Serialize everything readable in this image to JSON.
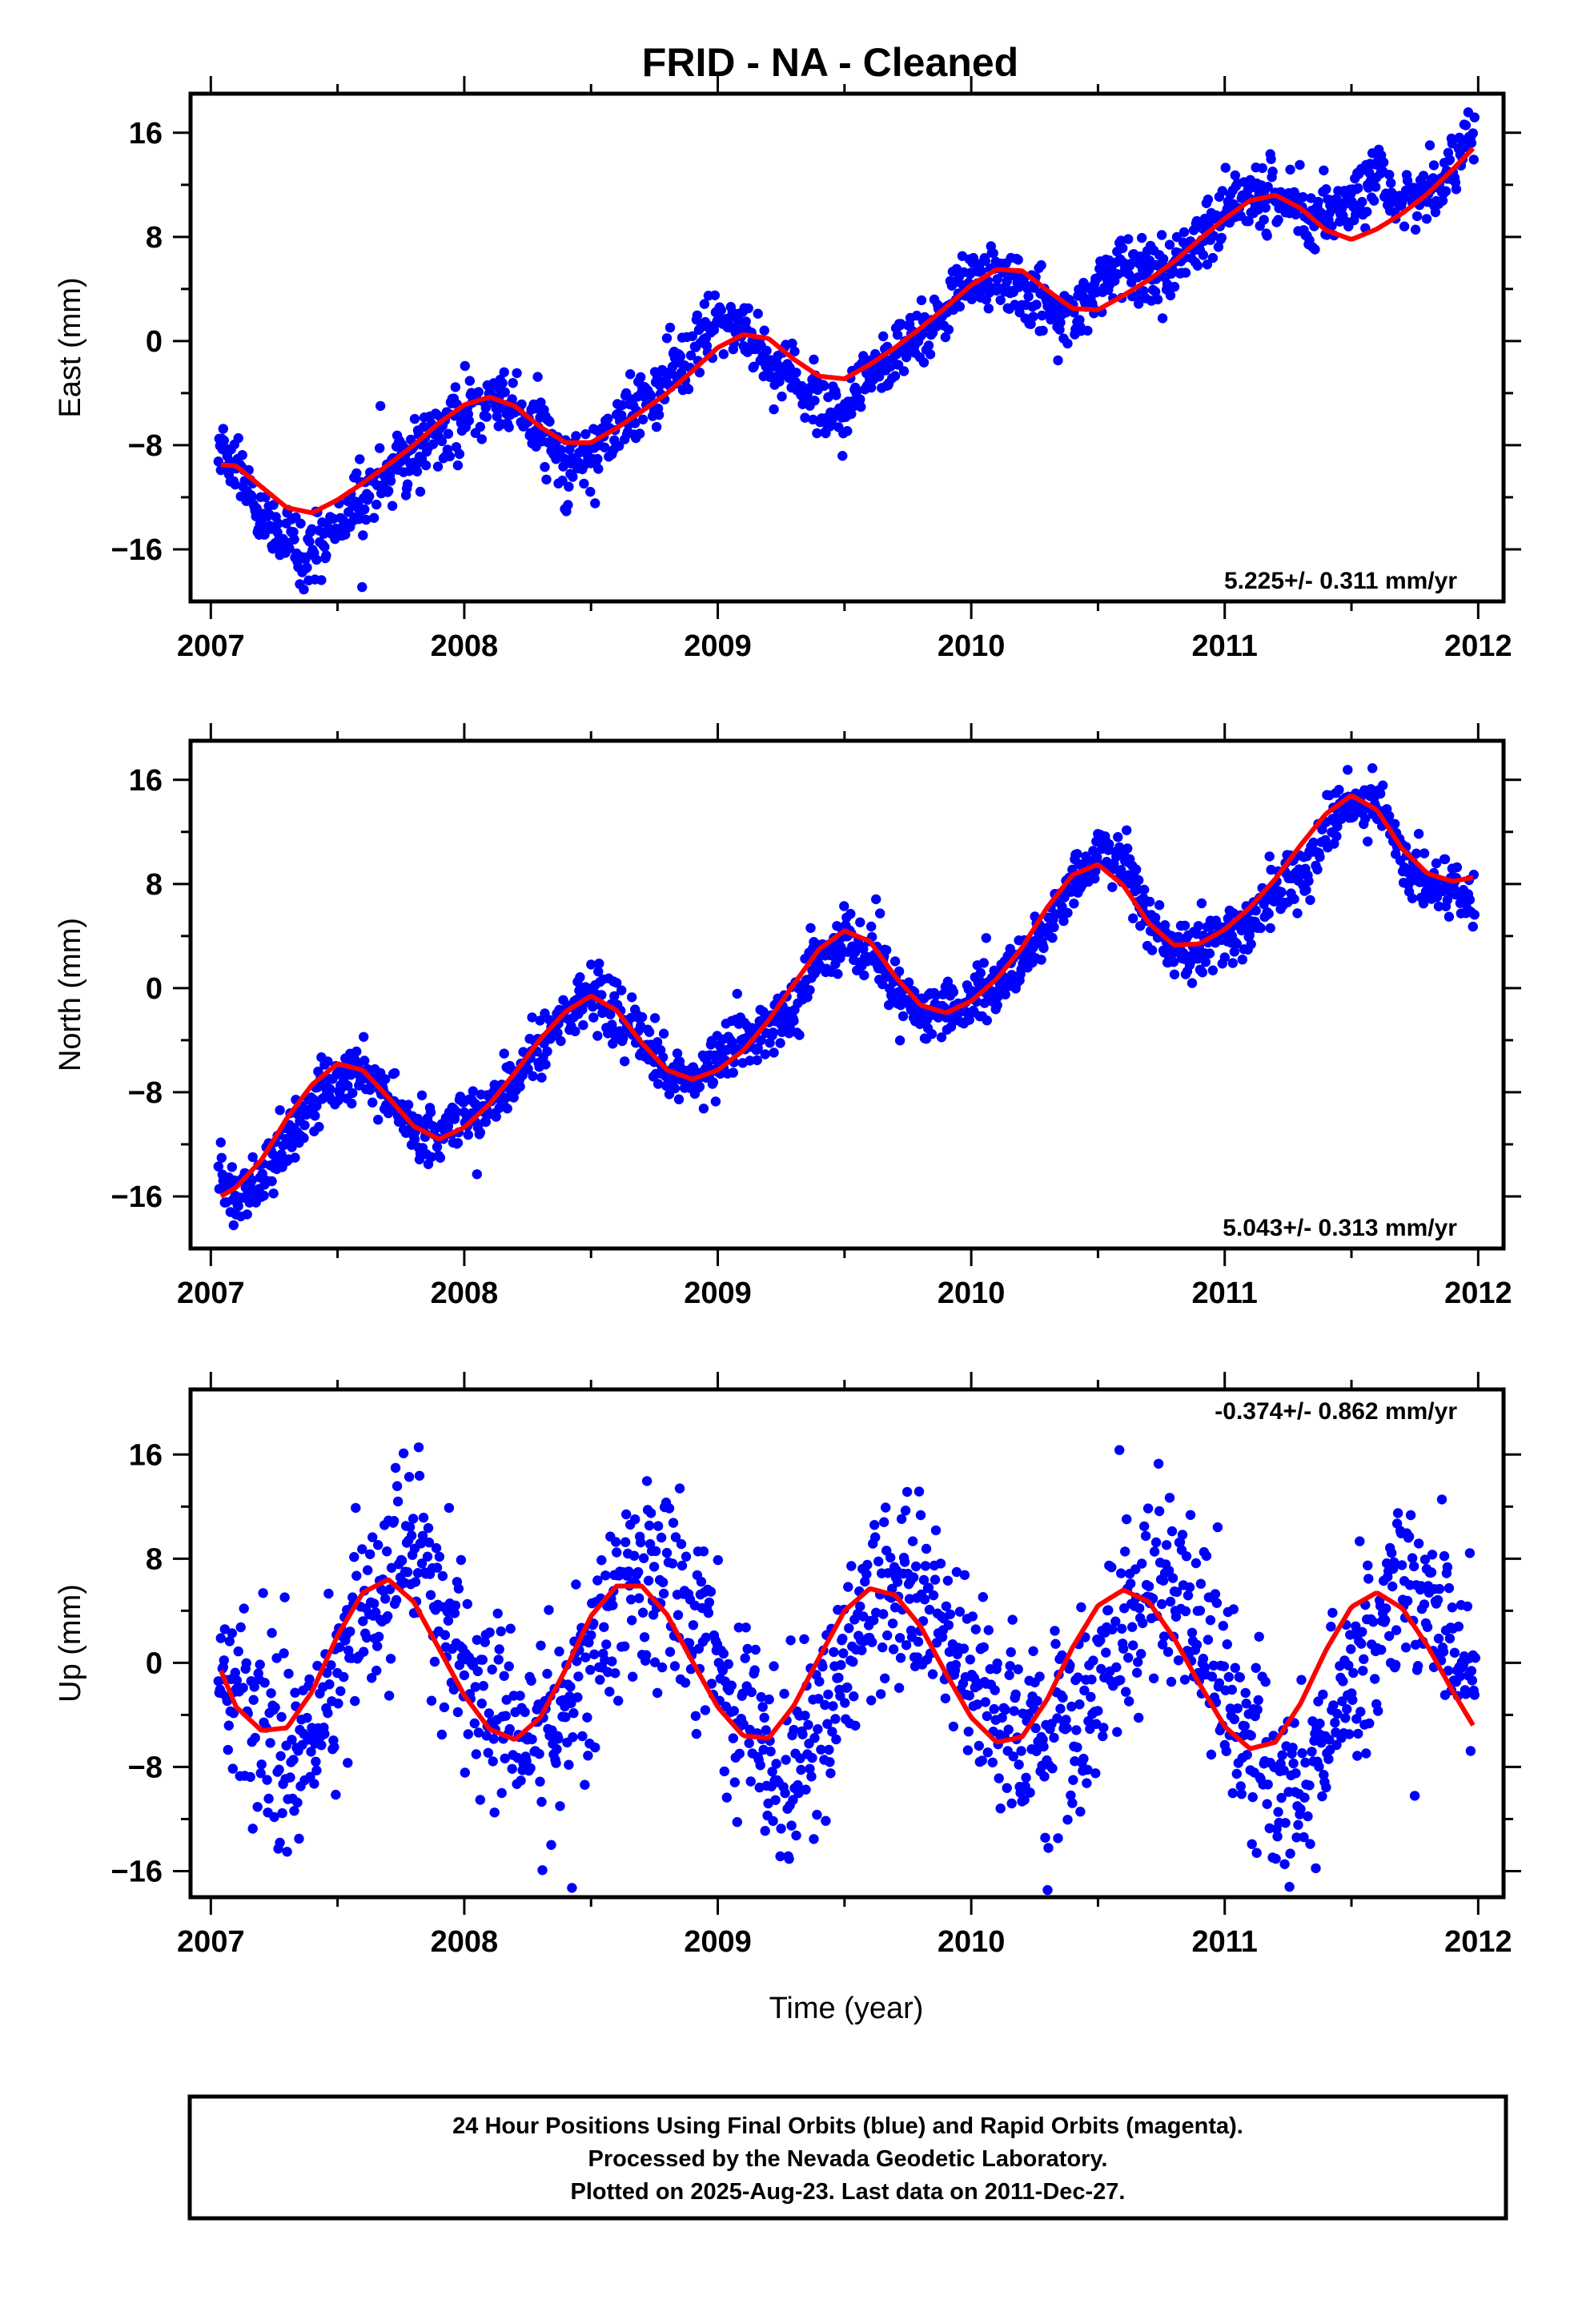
{
  "title": "FRID  - NA - Cleaned",
  "xlabel": "Time (year)",
  "footer": [
    "24 Hour Positions Using Final Orbits (blue) and Rapid Orbits (magenta).",
    "Processed by the Nevada Geodetic Laboratory.",
    "Plotted on 2025-Aug-23. Last data on 2011-Dec-27."
  ],
  "colors": {
    "points": "#0000ff",
    "model": "#ff0000",
    "frame": "#000000"
  },
  "chart_data": [
    {
      "type": "scatter",
      "ylabel": "East (mm)",
      "rate_label": "5.225+/- 0.311 mm/yr",
      "xlim": [
        2006.92,
        2012.1
      ],
      "ylim": [
        -20,
        19
      ],
      "xticks": [
        2007,
        2008,
        2009,
        2010,
        2011,
        2012
      ],
      "yticks": [
        -16,
        -8,
        0,
        8,
        16
      ],
      "data_start": 2007.03,
      "data_end": 2011.99,
      "grid": false,
      "series": [
        {
          "kind": "daily-positions",
          "x": [
            2007.04,
            2007.1,
            2007.2,
            2007.3,
            2007.4,
            2007.5,
            2007.6,
            2007.7,
            2007.8,
            2007.9,
            2008.0,
            2008.1,
            2008.2,
            2008.3,
            2008.4,
            2008.5,
            2008.6,
            2008.7,
            2008.8,
            2008.9,
            2009.0,
            2009.1,
            2009.2,
            2009.3,
            2009.4,
            2009.5,
            2009.6,
            2009.7,
            2009.8,
            2009.9,
            2010.0,
            2010.1,
            2010.2,
            2010.3,
            2010.4,
            2010.5,
            2010.6,
            2010.7,
            2010.8,
            2010.9,
            2011.0,
            2011.1,
            2011.2,
            2011.3,
            2011.4,
            2011.5,
            2011.6,
            2011.7,
            2011.8,
            2011.9,
            2011.98
          ],
          "y": [
            -8.0,
            -9.5,
            -14.0,
            -15.5,
            -16.5,
            -14.0,
            -12.0,
            -10.0,
            -8.5,
            -7.0,
            -5.5,
            -4.0,
            -5.0,
            -6.5,
            -9.5,
            -8.5,
            -6.5,
            -4.5,
            -3.0,
            -1.0,
            1.5,
            1.0,
            -1.5,
            -3.0,
            -4.5,
            -5.5,
            -3.0,
            -1.0,
            0.5,
            2.5,
            4.5,
            5.5,
            4.0,
            2.5,
            2.0,
            4.5,
            6.0,
            5.0,
            5.5,
            7.5,
            10.0,
            11.5,
            11.0,
            10.0,
            9.5,
            10.5,
            12.5,
            10.5,
            11.0,
            13.0,
            16.0
          ]
        },
        {
          "kind": "model-fit",
          "x": [
            2007.04,
            2007.1,
            2007.2,
            2007.3,
            2007.4,
            2007.5,
            2007.6,
            2007.7,
            2007.8,
            2007.9,
            2008.0,
            2008.1,
            2008.2,
            2008.3,
            2008.4,
            2008.5,
            2008.6,
            2008.7,
            2008.8,
            2008.9,
            2009.0,
            2009.1,
            2009.2,
            2009.3,
            2009.4,
            2009.5,
            2009.6,
            2009.7,
            2009.8,
            2009.9,
            2010.0,
            2010.1,
            2010.2,
            2010.3,
            2010.4,
            2010.5,
            2010.6,
            2010.7,
            2010.8,
            2010.9,
            2011.0,
            2011.1,
            2011.2,
            2011.3,
            2011.4,
            2011.5,
            2011.6,
            2011.7,
            2011.8,
            2011.9,
            2011.98
          ],
          "y": [
            -9.5,
            -9.6,
            -11.2,
            -12.8,
            -13.2,
            -12.2,
            -10.9,
            -9.5,
            -8.0,
            -6.3,
            -4.9,
            -4.3,
            -5.0,
            -6.6,
            -7.8,
            -7.8,
            -6.7,
            -5.4,
            -4.0,
            -2.3,
            -0.5,
            0.5,
            0.2,
            -1.4,
            -2.7,
            -2.9,
            -1.8,
            -0.5,
            1.0,
            2.6,
            4.3,
            5.5,
            5.4,
            3.9,
            2.5,
            2.4,
            3.5,
            4.7,
            6.1,
            7.8,
            9.4,
            10.8,
            11.2,
            10.2,
            8.5,
            7.8,
            8.6,
            9.8,
            11.3,
            13.2,
            14.8
          ]
        }
      ]
    },
    {
      "type": "scatter",
      "ylabel": "North (mm)",
      "rate_label": "5.043+/- 0.313 mm/yr",
      "xlim": [
        2006.92,
        2012.1
      ],
      "ylim": [
        -20,
        19
      ],
      "xticks": [
        2007,
        2008,
        2009,
        2010,
        2011,
        2012
      ],
      "yticks": [
        -16,
        -8,
        0,
        8,
        16
      ],
      "data_start": 2007.03,
      "data_end": 2011.99,
      "grid": false,
      "series": [
        {
          "kind": "daily-positions",
          "x": [
            2007.04,
            2007.1,
            2007.2,
            2007.3,
            2007.4,
            2007.5,
            2007.6,
            2007.7,
            2007.8,
            2007.9,
            2008.0,
            2008.1,
            2008.2,
            2008.3,
            2008.4,
            2008.5,
            2008.6,
            2008.7,
            2008.8,
            2008.9,
            2009.0,
            2009.1,
            2009.2,
            2009.3,
            2009.4,
            2009.5,
            2009.6,
            2009.7,
            2009.8,
            2009.9,
            2010.0,
            2010.1,
            2010.2,
            2010.3,
            2010.4,
            2010.5,
            2010.6,
            2010.7,
            2010.8,
            2010.9,
            2011.0,
            2011.1,
            2011.2,
            2011.3,
            2011.4,
            2011.5,
            2011.6,
            2011.7,
            2011.8,
            2011.9,
            2011.98
          ],
          "y": [
            -15.0,
            -16.5,
            -15.0,
            -12.0,
            -8.5,
            -6.5,
            -6.0,
            -8.5,
            -11.0,
            -11.0,
            -10.0,
            -9.0,
            -7.0,
            -4.0,
            -2.0,
            -0.5,
            -1.5,
            -4.0,
            -6.5,
            -7.0,
            -5.5,
            -4.0,
            -3.5,
            -1.0,
            2.0,
            3.5,
            3.0,
            0.0,
            -1.5,
            -2.0,
            -1.0,
            0.5,
            2.0,
            5.0,
            8.0,
            10.5,
            10.0,
            5.5,
            3.0,
            3.0,
            4.0,
            5.0,
            7.0,
            9.0,
            12.5,
            14.0,
            14.5,
            10.0,
            8.0,
            8.0,
            7.0
          ]
        },
        {
          "kind": "model-fit",
          "x": [
            2007.04,
            2007.1,
            2007.2,
            2007.3,
            2007.4,
            2007.5,
            2007.6,
            2007.7,
            2007.8,
            2007.9,
            2008.0,
            2008.1,
            2008.2,
            2008.3,
            2008.4,
            2008.5,
            2008.6,
            2008.7,
            2008.8,
            2008.9,
            2009.0,
            2009.1,
            2009.2,
            2009.3,
            2009.4,
            2009.5,
            2009.6,
            2009.7,
            2009.8,
            2009.9,
            2010.0,
            2010.1,
            2010.2,
            2010.3,
            2010.4,
            2010.5,
            2010.6,
            2010.7,
            2010.8,
            2010.9,
            2011.0,
            2011.1,
            2011.2,
            2011.3,
            2011.4,
            2011.5,
            2011.6,
            2011.7,
            2011.8,
            2011.9,
            2011.98
          ],
          "y": [
            -16.0,
            -15.3,
            -13.2,
            -10.0,
            -7.4,
            -5.8,
            -6.3,
            -8.4,
            -10.6,
            -11.6,
            -10.7,
            -8.9,
            -6.5,
            -3.9,
            -1.8,
            -0.6,
            -1.7,
            -4.2,
            -6.3,
            -7.0,
            -6.3,
            -4.8,
            -2.5,
            0.3,
            3.0,
            4.4,
            3.6,
            0.9,
            -1.3,
            -1.9,
            -1.0,
            0.7,
            3.1,
            6.2,
            8.7,
            9.5,
            7.9,
            5.0,
            3.3,
            3.4,
            4.5,
            6.2,
            8.4,
            11.0,
            13.4,
            14.8,
            13.7,
            10.7,
            8.8,
            8.2,
            8.5
          ]
        }
      ]
    },
    {
      "type": "scatter",
      "ylabel": "Up (mm)",
      "rate_label": "-0.374+/- 0.862 mm/yr",
      "xlim": [
        2006.92,
        2012.1
      ],
      "ylim": [
        -18,
        21
      ],
      "xticks": [
        2007,
        2008,
        2009,
        2010,
        2011,
        2012
      ],
      "yticks": [
        -16,
        -8,
        0,
        8,
        16
      ],
      "data_start": 2007.03,
      "data_end": 2011.99,
      "grid": false,
      "series": [
        {
          "kind": "daily-positions",
          "x": [
            2007.04,
            2007.1,
            2007.2,
            2007.3,
            2007.4,
            2007.5,
            2007.6,
            2007.7,
            2007.8,
            2007.9,
            2008.0,
            2008.1,
            2008.2,
            2008.3,
            2008.4,
            2008.5,
            2008.6,
            2008.7,
            2008.8,
            2008.9,
            2009.0,
            2009.1,
            2009.2,
            2009.3,
            2009.4,
            2009.5,
            2009.6,
            2009.7,
            2009.8,
            2009.9,
            2010.0,
            2010.1,
            2010.2,
            2010.3,
            2010.4,
            2010.5,
            2010.6,
            2010.7,
            2010.8,
            2010.9,
            2011.0,
            2011.1,
            2011.2,
            2011.3,
            2011.4,
            2011.5,
            2011.6,
            2011.7,
            2011.8,
            2011.9,
            2011.98
          ],
          "y": [
            -1.0,
            -3.0,
            -6.0,
            -8.0,
            -6.0,
            -1.0,
            4.0,
            8.0,
            7.0,
            4.0,
            1.0,
            -2.0,
            -5.0,
            -6.0,
            -4.0,
            1.0,
            5.0,
            7.0,
            6.0,
            3.0,
            -1.0,
            -4.0,
            -7.0,
            -8.0,
            -5.0,
            0.0,
            4.0,
            6.0,
            5.0,
            2.0,
            -1.0,
            -4.0,
            -6.0,
            -7.0,
            -5.0,
            -1.0,
            3.0,
            5.0,
            5.0,
            2.0,
            -2.0,
            -5.0,
            -8.0,
            -9.0,
            -6.0,
            -1.0,
            3.0,
            6.0,
            5.0,
            2.0,
            -1.0
          ]
        },
        {
          "kind": "model-fit",
          "x": [
            2007.04,
            2007.1,
            2007.2,
            2007.3,
            2007.4,
            2007.5,
            2007.6,
            2007.7,
            2007.8,
            2007.9,
            2008.0,
            2008.1,
            2008.2,
            2008.3,
            2008.4,
            2008.5,
            2008.6,
            2008.7,
            2008.8,
            2008.9,
            2009.0,
            2009.1,
            2009.2,
            2009.3,
            2009.4,
            2009.5,
            2009.6,
            2009.7,
            2009.8,
            2009.9,
            2010.0,
            2010.1,
            2010.2,
            2010.3,
            2010.4,
            2010.5,
            2010.6,
            2010.7,
            2010.8,
            2010.9,
            2011.0,
            2011.1,
            2011.2,
            2011.3,
            2011.4,
            2011.5,
            2011.6,
            2011.7,
            2011.8,
            2011.9,
            2011.98
          ],
          "y": [
            -0.6,
            -3.4,
            -5.2,
            -5.0,
            -2.2,
            2.1,
            5.4,
            6.4,
            4.7,
            1.1,
            -2.5,
            -5.1,
            -5.9,
            -4.2,
            -0.5,
            3.6,
            5.9,
            5.9,
            3.7,
            0.1,
            -3.4,
            -5.6,
            -5.8,
            -3.3,
            0.4,
            4.0,
            5.7,
            5.2,
            2.8,
            -0.8,
            -4.2,
            -6.1,
            -5.7,
            -2.8,
            1.2,
            4.4,
            5.6,
            4.7,
            1.9,
            -1.6,
            -4.9,
            -6.6,
            -6.1,
            -3.1,
            1.0,
            4.3,
            5.4,
            4.2,
            1.3,
            -2.2,
            -4.8
          ]
        }
      ]
    }
  ]
}
